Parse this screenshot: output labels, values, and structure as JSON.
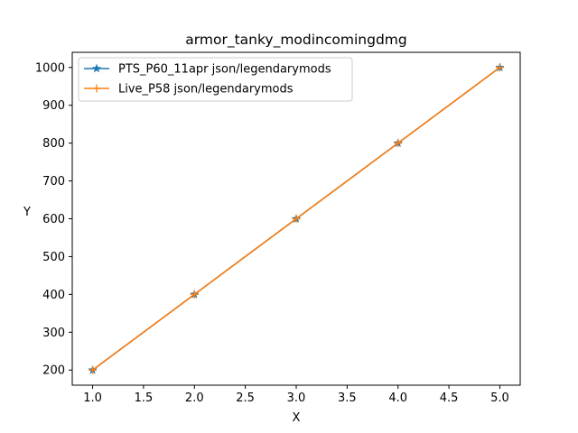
{
  "chart_data": {
    "type": "line",
    "title": "armor_tanky_modincomingdmg",
    "xlabel": "X",
    "ylabel": "Y",
    "xlim": [
      0.8,
      5.2
    ],
    "ylim": [
      160,
      1040
    ],
    "xticks": [
      1.0,
      1.5,
      2.0,
      2.5,
      3.0,
      3.5,
      4.0,
      4.5,
      5.0
    ],
    "xtick_labels": [
      "1.0",
      "1.5",
      "2.0",
      "2.5",
      "3.0",
      "3.5",
      "4.0",
      "4.5",
      "5.0"
    ],
    "yticks": [
      200,
      300,
      400,
      500,
      600,
      700,
      800,
      900,
      1000
    ],
    "ytick_labels": [
      "200",
      "300",
      "400",
      "500",
      "600",
      "700",
      "800",
      "900",
      "1000"
    ],
    "grid": false,
    "legend_position": "top-left",
    "series": [
      {
        "name": "PTS_P60_11apr json/legendarymods",
        "color": "#1f77b4",
        "marker": "star",
        "x": [
          1,
          2,
          3,
          4,
          5
        ],
        "y": [
          200,
          400,
          600,
          800,
          1000
        ]
      },
      {
        "name": "Live_P58 json/legendarymods",
        "color": "#ff7f0e",
        "marker": "plus",
        "x": [
          1,
          2,
          3,
          4,
          5
        ],
        "y": [
          200,
          400,
          600,
          800,
          1000
        ]
      }
    ]
  }
}
